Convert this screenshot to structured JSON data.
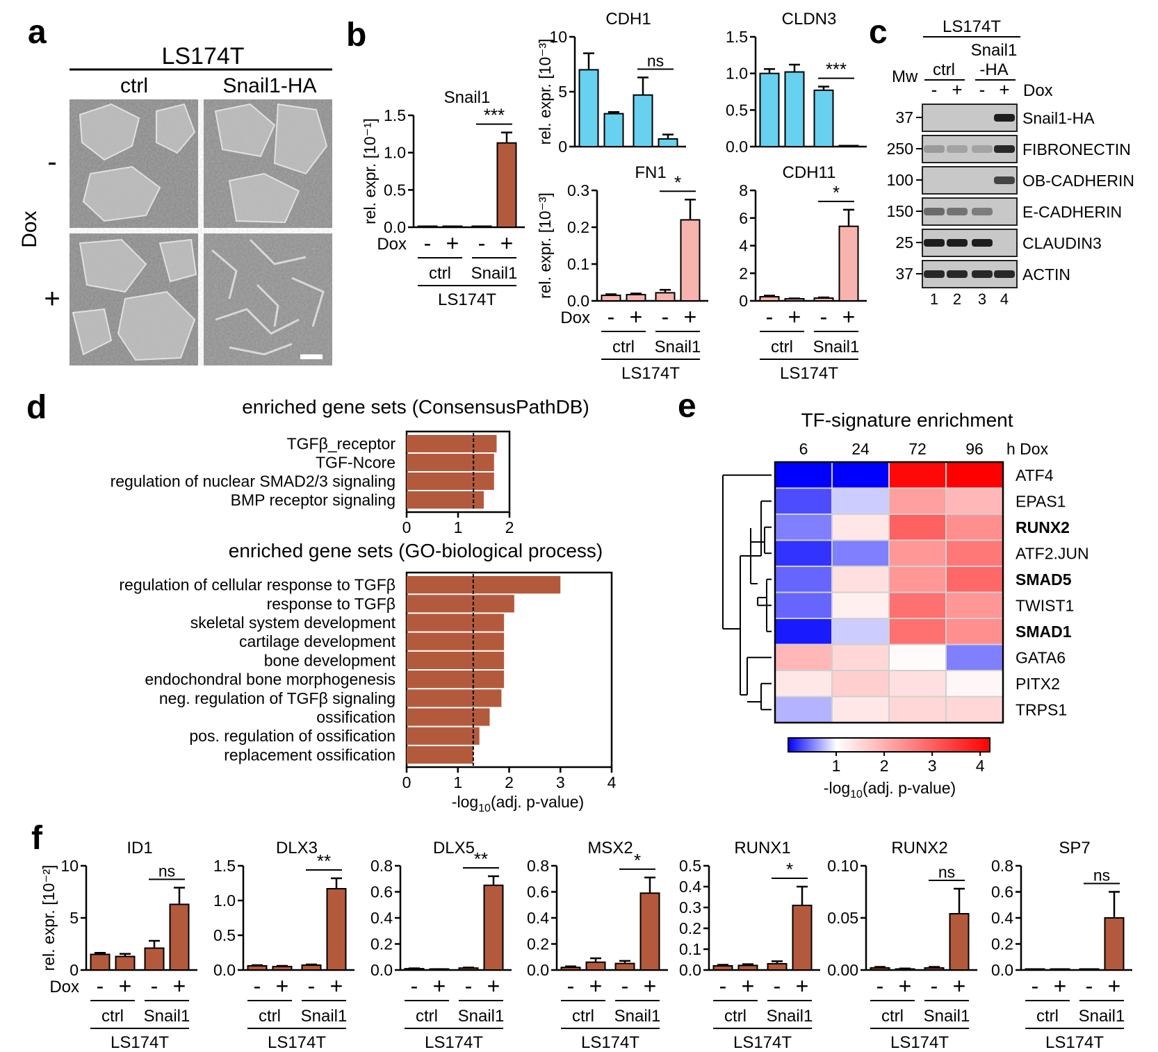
{
  "colors": {
    "dox_bar": "#b45a3c",
    "blue_bar": "#67d1ef",
    "pink_bar": "#f7b3ad",
    "heat_low": "#0000ff",
    "heat_mid": "#ffffff",
    "heat_high": "#ff0000"
  },
  "panel_letters": [
    "a",
    "b",
    "c",
    "d",
    "e",
    "f"
  ],
  "panel_a": {
    "cell_line": "LS174T",
    "col_ctrl": "ctrl",
    "col_snail": "Snail1-HA",
    "row_label": "Dox",
    "minus": "-",
    "plus": "+"
  },
  "common": {
    "ylabel_b": "rel. expr. [10⁻¹]",
    "ylabel_b3": "rel. expr. [10⁻³]",
    "ylabel_f": "rel. expr. [10⁻²]",
    "dox": "Dox",
    "minus": "-",
    "plus": "+",
    "ctrl": "ctrl",
    "snail": "Snail1",
    "cell_line": "LS174T"
  },
  "panel_c": {
    "cell_line": "LS174T",
    "ctrl": "ctrl",
    "snail_top": "Snail1",
    "snail_bottom": "-HA",
    "mw": "Mw",
    "dox": "Dox",
    "signs": [
      "-",
      "+",
      "-",
      "+"
    ],
    "lanes": [
      "1",
      "2",
      "3",
      "4"
    ],
    "bands": [
      {
        "name": "Snail1-HA",
        "mw": "37"
      },
      {
        "name": "FIBRONECTIN",
        "mw": "250"
      },
      {
        "name": "OB-CADHERIN",
        "mw": "100"
      },
      {
        "name": "E-CADHERIN",
        "mw": "150"
      },
      {
        "name": "CLAUDIN3",
        "mw": "25"
      },
      {
        "name": "ACTIN",
        "mw": "37"
      }
    ]
  },
  "panel_d": {
    "title1": "enriched gene sets (ConsensusPathDB)",
    "title2": "enriched gene sets (GO-biological process)",
    "xlabel": "-log10(adj. p-value)"
  },
  "panel_e": {
    "title": "TF-signature enrichment",
    "unit": "h Dox",
    "cbar_label": "-log10(adj. p-value)"
  },
  "chart_data": [
    {
      "type": "bar",
      "panel": "b",
      "title": "Snail1",
      "ylabel": "rel. expr. [10-1]",
      "categories": [
        "ctrl -",
        "ctrl +",
        "Snail1 -",
        "Snail1 +"
      ],
      "values": [
        0.0,
        0.0,
        0.01,
        1.13
      ],
      "errors": [
        0,
        0,
        0,
        0.14
      ],
      "yticks": [
        "0.0",
        "0.5",
        "1.0",
        "1.5"
      ],
      "ylim": [
        0,
        1.5
      ],
      "significance": "***"
    },
    {
      "type": "bar",
      "panel": "b",
      "title": "CDH1",
      "ylabel": "rel. expr. [10-3]",
      "categories": [
        "ctrl -",
        "ctrl +",
        "Snail1 -",
        "Snail1 +"
      ],
      "values": [
        7.0,
        3.0,
        4.7,
        0.7
      ],
      "errors": [
        1.5,
        0.15,
        1.6,
        0.4
      ],
      "yticks": [
        "0",
        "5",
        "10"
      ],
      "ylim": [
        0,
        10
      ],
      "significance": "ns"
    },
    {
      "type": "bar",
      "panel": "b",
      "title": "CLDN3",
      "categories": [
        "ctrl -",
        "ctrl +",
        "Snail1 -",
        "Snail1 +"
      ],
      "values": [
        1.0,
        1.02,
        0.77,
        0.0
      ],
      "errors": [
        0.06,
        0.1,
        0.05,
        0
      ],
      "yticks": [
        "0.0",
        "0.5",
        "1.0",
        "1.5"
      ],
      "ylim": [
        0,
        1.5
      ],
      "significance": "***"
    },
    {
      "type": "bar",
      "panel": "b",
      "title": "FN1",
      "ylabel": "rel. expr. [10-3]",
      "categories": [
        "ctrl -",
        "ctrl +",
        "Snail1 -",
        "Snail1 +"
      ],
      "values": [
        0.015,
        0.017,
        0.022,
        0.22
      ],
      "errors": [
        0.003,
        0.003,
        0.008,
        0.055
      ],
      "yticks": [
        "0.0",
        "0.1",
        "0.2",
        "0.3"
      ],
      "ylim": [
        0,
        0.3
      ],
      "significance": "*"
    },
    {
      "type": "bar",
      "panel": "b",
      "title": "CDH11",
      "categories": [
        "ctrl -",
        "ctrl +",
        "Snail1 -",
        "Snail1 +"
      ],
      "values": [
        0.3,
        0.15,
        0.2,
        5.4
      ],
      "errors": [
        0.08,
        0.03,
        0.05,
        1.2
      ],
      "yticks": [
        "0",
        "2",
        "4",
        "6",
        "8"
      ],
      "ylim": [
        0,
        8
      ],
      "significance": "*"
    },
    {
      "type": "bar",
      "panel": "d",
      "orientation": "horizontal",
      "title": "enriched gene sets (ConsensusPathDB)",
      "categories": [
        "TGFβ_receptor",
        "TGF-Ncore",
        "regulation of nuclear SMAD2/3 signaling",
        "BMP receptor signaling"
      ],
      "values": [
        1.75,
        1.7,
        1.7,
        1.5
      ],
      "threshold": 1.3,
      "xticks": [
        "0",
        "1",
        "2"
      ],
      "xlim": [
        0,
        2
      ]
    },
    {
      "type": "bar",
      "panel": "d",
      "orientation": "horizontal",
      "title": "enriched gene sets (GO-biological process)",
      "categories": [
        "regulation of cellular response to TGFβ",
        "response to TGFβ",
        "skeletal system development",
        "cartilage development",
        "bone development",
        "endochondral bone morphogenesis",
        "neg. regulation of TGFβ signaling",
        "ossification",
        "pos. regulation of ossification",
        "replacement ossification"
      ],
      "values": [
        3.0,
        2.1,
        1.9,
        1.9,
        1.9,
        1.9,
        1.85,
        1.62,
        1.42,
        1.3
      ],
      "threshold": 1.3,
      "xticks": [
        "0",
        "1",
        "2",
        "3",
        "4"
      ],
      "xlim": [
        0,
        4
      ],
      "xlabel": "-log10(adj. p-value)"
    },
    {
      "type": "heatmap",
      "panel": "e",
      "title": "TF-signature enrichment",
      "columns": [
        "6",
        "24",
        "72",
        "96"
      ],
      "rows": [
        "ATF4",
        "EPAS1",
        "RUNX2",
        "ATF2.JUN",
        "SMAD5",
        "TWIST1",
        "SMAD1",
        "GATA6",
        "PITX2",
        "TRPS1"
      ],
      "bold_rows": [
        "RUNX2",
        "SMAD5",
        "SMAD1"
      ],
      "values": [
        [
          0.0,
          0.0,
          4.1,
          4.2
        ],
        [
          0.3,
          0.8,
          2.2,
          1.9
        ],
        [
          0.5,
          1.3,
          3.0,
          2.4
        ],
        [
          0.2,
          0.5,
          2.3,
          2.7
        ],
        [
          0.4,
          1.4,
          2.3,
          2.9
        ],
        [
          0.4,
          1.2,
          2.8,
          2.3
        ],
        [
          0.1,
          0.8,
          2.8,
          2.4
        ],
        [
          1.9,
          1.5,
          1.05,
          0.5
        ],
        [
          1.3,
          1.6,
          1.4,
          1.1
        ],
        [
          0.7,
          1.3,
          1.5,
          1.5
        ]
      ],
      "colorbar_ticks": [
        "1",
        "2",
        "3",
        "4"
      ],
      "range": [
        0,
        4.2
      ],
      "xlabel": "-log10(adj. p-value)"
    },
    {
      "type": "bar",
      "panel": "f",
      "title": "ID1",
      "ylabel": "rel. expr. [10-2]",
      "categories": [
        "ctrl -",
        "ctrl +",
        "Snail1 -",
        "Snail1 +"
      ],
      "values": [
        1.5,
        1.3,
        2.1,
        6.3
      ],
      "errors": [
        0.15,
        0.25,
        0.7,
        1.6
      ],
      "yticks": [
        "0",
        "5",
        "10"
      ],
      "ylim": [
        0,
        10
      ],
      "significance": "ns"
    },
    {
      "type": "bar",
      "panel": "f",
      "title": "DLX3",
      "categories": [
        "ctrl -",
        "ctrl +",
        "Snail1 -",
        "Snail1 +"
      ],
      "values": [
        0.06,
        0.05,
        0.07,
        1.17
      ],
      "errors": [
        0.01,
        0.01,
        0.01,
        0.15
      ],
      "yticks": [
        "0.0",
        "0.5",
        "1.0",
        "1.5"
      ],
      "ylim": [
        0,
        1.5
      ],
      "significance": "**"
    },
    {
      "type": "bar",
      "panel": "f",
      "title": "DLX5",
      "categories": [
        "ctrl -",
        "ctrl +",
        "Snail1 -",
        "Snail1 +"
      ],
      "values": [
        0.01,
        0.005,
        0.015,
        0.65
      ],
      "errors": [
        0.003,
        0.002,
        0.004,
        0.07
      ],
      "yticks": [
        "0.0",
        "0.2",
        "0.4",
        "0.6",
        "0.8"
      ],
      "ylim": [
        0,
        0.8
      ],
      "significance": "**"
    },
    {
      "type": "bar",
      "panel": "f",
      "title": "MSX2",
      "categories": [
        "ctrl -",
        "ctrl +",
        "Snail1 -",
        "Snail1 +"
      ],
      "values": [
        0.02,
        0.06,
        0.05,
        0.59
      ],
      "errors": [
        0.008,
        0.03,
        0.02,
        0.12
      ],
      "yticks": [
        "0.0",
        "0.2",
        "0.4",
        "0.6",
        "0.8"
      ],
      "ylim": [
        0,
        0.8
      ],
      "significance": "*"
    },
    {
      "type": "bar",
      "panel": "f",
      "title": "RUNX1",
      "categories": [
        "ctrl -",
        "ctrl +",
        "Snail1 -",
        "Snail1 +"
      ],
      "values": [
        0.02,
        0.022,
        0.03,
        0.31
      ],
      "errors": [
        0.005,
        0.006,
        0.012,
        0.09
      ],
      "yticks": [
        "0.0",
        "0.1",
        "0.2",
        "0.3",
        "0.4",
        "0.5"
      ],
      "ylim": [
        0,
        0.5
      ],
      "significance": "*"
    },
    {
      "type": "bar",
      "panel": "f",
      "title": "RUNX2",
      "categories": [
        "ctrl -",
        "ctrl +",
        "Snail1 -",
        "Snail1 +"
      ],
      "values": [
        0.002,
        0.001,
        0.002,
        0.054
      ],
      "errors": [
        0.001,
        0.0005,
        0.001,
        0.024
      ],
      "yticks": [
        "0.00",
        "0.05",
        "0.10"
      ],
      "ylim": [
        0,
        0.1
      ],
      "significance": "ns"
    },
    {
      "type": "bar",
      "panel": "f",
      "title": "SP7",
      "categories": [
        "ctrl -",
        "ctrl +",
        "Snail1 -",
        "Snail1 +"
      ],
      "values": [
        0.0,
        0.0,
        0.0,
        0.4
      ],
      "errors": [
        0,
        0,
        0,
        0.2
      ],
      "yticks": [
        "0.0",
        "0.2",
        "0.4",
        "0.6",
        "0.8"
      ],
      "ylim": [
        0,
        0.8
      ],
      "significance": "ns"
    }
  ]
}
